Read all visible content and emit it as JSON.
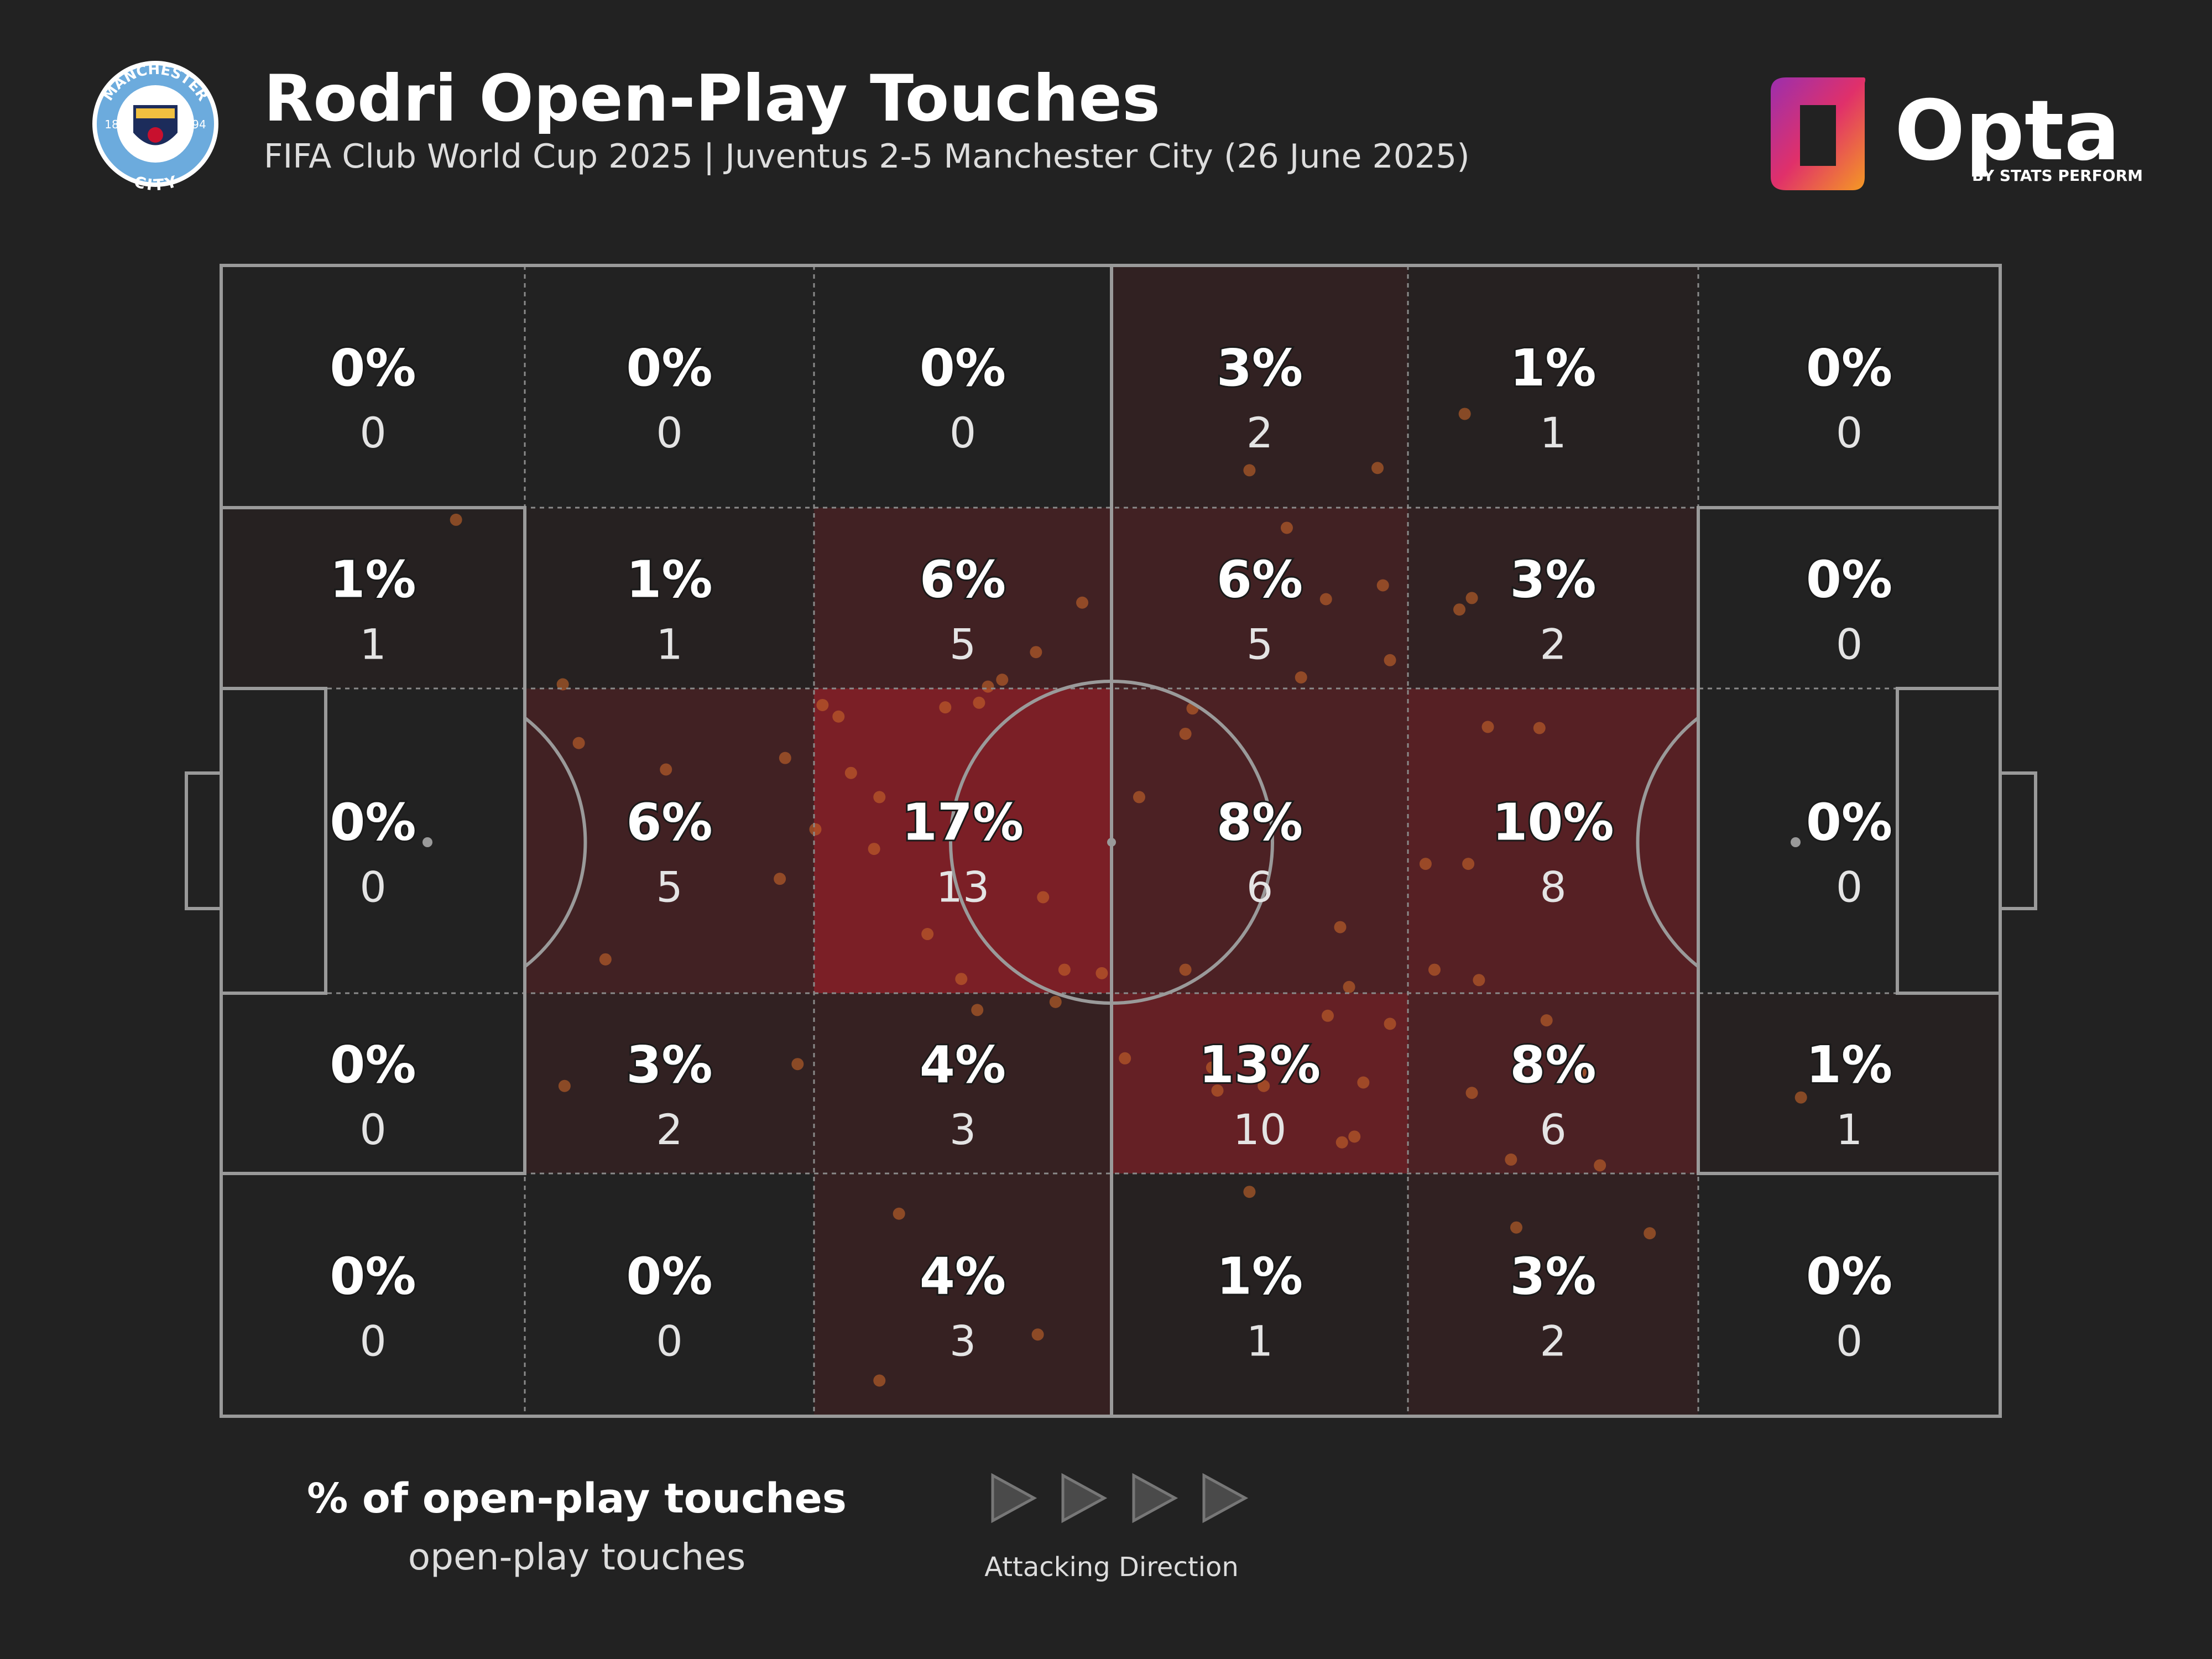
{
  "chart_data": {
    "type": "heatmap",
    "title": "Rodri Open-Play Touches",
    "subtitle": "FIFA Club World Cup 2025 | Juventus 2-5 Manchester City (26 June 2025)",
    "values": [
      [
        0,
        0,
        0,
        3,
        1,
        0
      ],
      [
        1,
        1,
        6,
        6,
        3,
        0
      ],
      [
        0,
        6,
        17,
        8,
        10,
        0
      ],
      [
        0,
        3,
        4,
        13,
        8,
        1
      ],
      [
        0,
        0,
        4,
        1,
        3,
        0
      ]
    ],
    "value_labels": [
      [
        "0%",
        "0%",
        "0%",
        "3%",
        "1%",
        "0%"
      ],
      [
        "1%",
        "1%",
        "6%",
        "6%",
        "3%",
        "0%"
      ],
      [
        "0%",
        "6%",
        "17%",
        "8%",
        "10%",
        "0%"
      ],
      [
        "0%",
        "3%",
        "4%",
        "13%",
        "8%",
        "1%"
      ],
      [
        "0%",
        "0%",
        "4%",
        "1%",
        "3%",
        "0%"
      ]
    ],
    "counts": [
      [
        0,
        0,
        0,
        2,
        1,
        0
      ],
      [
        1,
        1,
        5,
        5,
        2,
        0
      ],
      [
        0,
        5,
        13,
        6,
        8,
        0
      ],
      [
        0,
        2,
        3,
        10,
        6,
        1
      ],
      [
        0,
        0,
        3,
        1,
        2,
        0
      ]
    ],
    "color": "#c41e2a",
    "touches": {
      "color": "#c8662a",
      "xlim": [
        0,
        100
      ],
      "ylim": [
        0,
        100
      ],
      "x": [
        13.2,
        69.9,
        57.8,
        65.0,
        59.9,
        48.4,
        62.1,
        65.3,
        69.6,
        70.3,
        45.8,
        60.7,
        65.7,
        43.9,
        43.1,
        19.2,
        33.8,
        34.7,
        40.7,
        42.6,
        54.6,
        54.2,
        71.2,
        74.1,
        20.1,
        31.7,
        25.0,
        35.4,
        37.0,
        51.6,
        33.4,
        36.7,
        31.4,
        46.2,
        67.7,
        70.1,
        62.9,
        39.7,
        21.6,
        47.4,
        49.5,
        54.2,
        68.2,
        70.7,
        41.6,
        46.9,
        63.4,
        42.5,
        62.2,
        65.7,
        50.8,
        55.7,
        56.0,
        58.6,
        64.2,
        70.3,
        74.5,
        76.4,
        32.4,
        19.3,
        88.8,
        63.0,
        63.7,
        72.5,
        77.5,
        57.8,
        38.1,
        72.8,
        80.3,
        45.9,
        37.0
      ],
      "y": [
        22.1,
        12.9,
        17.8,
        17.6,
        22.8,
        29.3,
        29.0,
        27.8,
        29.9,
        28.9,
        33.6,
        35.8,
        34.3,
        36.0,
        36.6,
        36.4,
        38.2,
        39.2,
        38.4,
        38.0,
        38.5,
        40.7,
        40.1,
        40.2,
        41.5,
        42.8,
        43.8,
        44.1,
        46.2,
        46.2,
        49.0,
        50.7,
        53.3,
        54.9,
        52.0,
        52.0,
        57.5,
        58.1,
        60.3,
        61.2,
        61.5,
        61.2,
        61.2,
        62.1,
        62.0,
        64.0,
        62.7,
        64.7,
        65.2,
        65.9,
        68.9,
        69.7,
        71.7,
        71.3,
        71.0,
        71.9,
        65.6,
        70.1,
        69.4,
        71.3,
        72.3,
        76.2,
        75.7,
        77.7,
        78.2,
        80.5,
        82.4,
        83.6,
        84.1,
        92.9,
        96.9
      ]
    },
    "legend_title": "% of open-play touches",
    "legend_subtitle": "open-play touches",
    "direction_label": "Attacking Direction"
  },
  "brand": {
    "name": "Opta",
    "tagline": "BY STATS PERFORM"
  },
  "crest": {
    "top": "MANCHESTER",
    "bottom": "CITY",
    "left": "18",
    "right": "94"
  }
}
